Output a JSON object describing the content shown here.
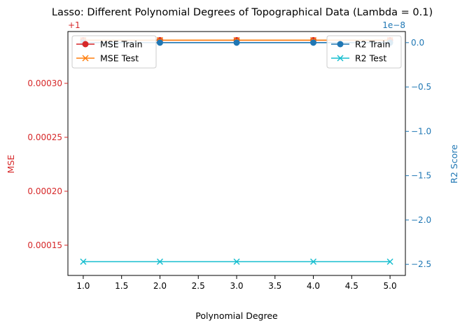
{
  "chart_data": {
    "type": "line",
    "title": "Lasso: Different Polynomial Degrees of Topographical Data (Lambda = 0.1)",
    "xlabel": "Polynomial Degree",
    "ylabel_left": "MSE",
    "ylabel_right": "R2 Score",
    "left_offset_label": "+1",
    "right_offset_label": "1e−8",
    "x": [
      1.0,
      2.0,
      3.0,
      4.0,
      5.0
    ],
    "xlim": [
      0.8,
      5.2
    ],
    "xticks": [
      1.0,
      1.5,
      2.0,
      2.5,
      3.0,
      3.5,
      4.0,
      4.5,
      5.0
    ],
    "xtick_labels": [
      "1.0",
      "1.5",
      "2.0",
      "2.5",
      "3.0",
      "3.5",
      "4.0",
      "4.5",
      "5.0"
    ],
    "left_ylim": [
      0.000122,
      0.000348
    ],
    "left_yticks": [
      0.00015,
      0.0002,
      0.00025,
      0.0003
    ],
    "left_ytick_labels": [
      "0.00015",
      "0.00020",
      "0.00025",
      "0.00030"
    ],
    "right_ylim": [
      -2.625e-08,
      1.25e-09
    ],
    "right_yticks": [
      0.0,
      -5e-09,
      -1e-08,
      -1.5e-08,
      -2e-08,
      -2.5e-08
    ],
    "right_ytick_labels": [
      "0.0",
      "−0.5",
      "−1.0",
      "−1.5",
      "−2.0",
      "−2.5"
    ],
    "grid": false,
    "left_axis_color": "#d62728",
    "right_axis_color": "#1f77b4",
    "series": [
      {
        "name": "MSE Train",
        "axis": "left",
        "color": "#d62728",
        "marker": "circle",
        "values": [
          0.00034,
          0.00034,
          0.00034,
          0.00034,
          0.00034
        ]
      },
      {
        "name": "MSE Test",
        "axis": "left",
        "color": "#ff7f0e",
        "marker": "x",
        "values": [
          0.00034,
          0.00034,
          0.00034,
          0.00034,
          0.00034
        ]
      },
      {
        "name": "R2 Train",
        "axis": "right",
        "color": "#1f77b4",
        "marker": "circle",
        "values": [
          0.0,
          0.0,
          0.0,
          0.0,
          0.0
        ]
      },
      {
        "name": "R2 Test",
        "axis": "right",
        "color": "#17becf",
        "marker": "x",
        "values": [
          -2.47e-08,
          -2.47e-08,
          -2.47e-08,
          -2.47e-08,
          -2.47e-08
        ]
      }
    ],
    "legends": [
      {
        "position": "upper-left",
        "entries": [
          "MSE Train",
          "MSE Test"
        ]
      },
      {
        "position": "upper-right",
        "entries": [
          "R2 Train",
          "R2 Test"
        ]
      }
    ]
  }
}
